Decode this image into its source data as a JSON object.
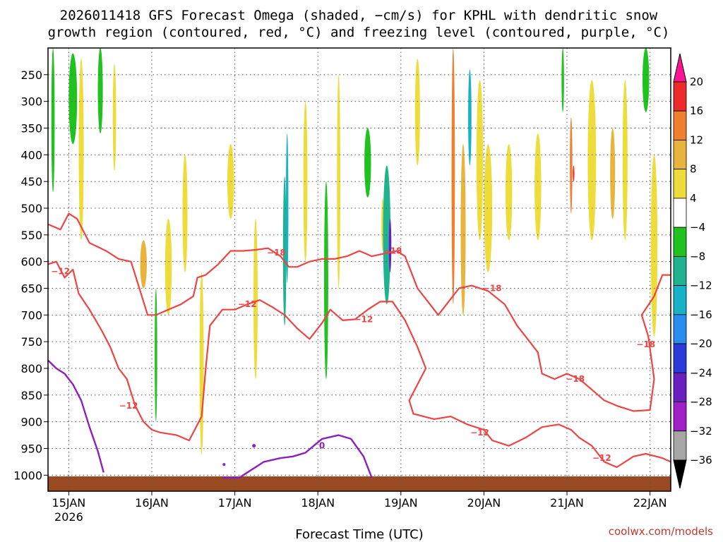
{
  "chart_data": {
    "type": "heatmap",
    "title_lines": [
      "2026011418 GFS Forecast Omega (shaded, −cm/s) for KPHL with dendritic snow",
      "growth region (contoured, red, °C) and freezing level (contoured, purple, °C)"
    ],
    "xlabel": "Forecast Time (UTC)",
    "credit": "coolwx.com/models",
    "x_ticks": [
      {
        "t": 0.5,
        "label": "15JAN",
        "sub": "2026"
      },
      {
        "t": 1.5,
        "label": "16JAN",
        "sub": ""
      },
      {
        "t": 2.5,
        "label": "17JAN",
        "sub": ""
      },
      {
        "t": 3.5,
        "label": "18JAN",
        "sub": ""
      },
      {
        "t": 4.5,
        "label": "19JAN",
        "sub": ""
      },
      {
        "t": 5.5,
        "label": "20JAN",
        "sub": ""
      },
      {
        "t": 6.5,
        "label": "21JAN",
        "sub": ""
      },
      {
        "t": 7.5,
        "label": "22JAN",
        "sub": ""
      }
    ],
    "x_range": [
      0.25,
      7.75
    ],
    "y_axis": {
      "unit": "hPa",
      "range": [
        200,
        1030
      ]
    },
    "y_ticks": [
      250,
      300,
      350,
      400,
      450,
      500,
      550,
      600,
      650,
      700,
      750,
      800,
      850,
      900,
      950,
      1000
    ],
    "colorbar": {
      "levels": [
        "20",
        "16",
        "12",
        "8",
        "4",
        "−4",
        "−8",
        "−12",
        "−16",
        "−20",
        "−24",
        "−28",
        "−32",
        "−36"
      ],
      "colors": [
        "#ff1493",
        "#ee2b2b",
        "#f07f2e",
        "#e8b43c",
        "#eedc3a",
        "#ffffff",
        "#1fc21f",
        "#1fb390",
        "#17b2c9",
        "#2a8df0",
        "#2b3bd9",
        "#6a1fc0",
        "#a020c8",
        "#a6a6a6",
        "#000000"
      ]
    },
    "shading": [
      {
        "t": 0.31,
        "p0": 200,
        "p1": 470,
        "w": 0.04,
        "v": -6
      },
      {
        "t": 0.55,
        "p0": 210,
        "p1": 380,
        "w": 0.1,
        "v": -7
      },
      {
        "t": 0.65,
        "p0": 220,
        "p1": 560,
        "w": 0.06,
        "v": 5
      },
      {
        "t": 0.88,
        "p0": 200,
        "p1": 360,
        "w": 0.06,
        "v": -6
      },
      {
        "t": 1.05,
        "p0": 230,
        "p1": 430,
        "w": 0.04,
        "v": 5
      },
      {
        "t": 1.4,
        "p0": 560,
        "p1": 650,
        "w": 0.08,
        "v": 9
      },
      {
        "t": 1.55,
        "p0": 650,
        "p1": 900,
        "w": 0.03,
        "v": -6
      },
      {
        "t": 1.7,
        "p0": 520,
        "p1": 700,
        "w": 0.08,
        "v": 6
      },
      {
        "t": 1.9,
        "p0": 400,
        "p1": 620,
        "w": 0.06,
        "v": 5
      },
      {
        "t": 2.1,
        "p0": 620,
        "p1": 960,
        "w": 0.05,
        "v": 5
      },
      {
        "t": 2.45,
        "p0": 380,
        "p1": 520,
        "w": 0.08,
        "v": 5
      },
      {
        "t": 2.75,
        "p0": 520,
        "p1": 820,
        "w": 0.05,
        "v": 5
      },
      {
        "t": 3.1,
        "p0": 440,
        "p1": 720,
        "w": 0.04,
        "v": -8
      },
      {
        "t": 3.13,
        "p0": 360,
        "p1": 640,
        "w": 0.03,
        "v": -13
      },
      {
        "t": 3.35,
        "p0": 300,
        "p1": 600,
        "w": 0.05,
        "v": 5
      },
      {
        "t": 3.6,
        "p0": 450,
        "p1": 820,
        "w": 0.05,
        "v": -6
      },
      {
        "t": 3.75,
        "p0": 250,
        "p1": 650,
        "w": 0.04,
        "v": 5
      },
      {
        "t": 4.1,
        "p0": 350,
        "p1": 480,
        "w": 0.08,
        "v": -6
      },
      {
        "t": 4.28,
        "p0": 480,
        "p1": 580,
        "w": 0.03,
        "v": 5
      },
      {
        "t": 4.33,
        "p0": 420,
        "p1": 680,
        "w": 0.09,
        "v": -9
      },
      {
        "t": 4.37,
        "p0": 520,
        "p1": 620,
        "w": 0.03,
        "v": -26
      },
      {
        "t": 4.7,
        "p0": 220,
        "p1": 420,
        "w": 0.06,
        "v": 5
      },
      {
        "t": 5.13,
        "p0": 200,
        "p1": 680,
        "w": 0.04,
        "v": 12
      },
      {
        "t": 5.25,
        "p0": 380,
        "p1": 700,
        "w": 0.06,
        "v": 9
      },
      {
        "t": 5.33,
        "p0": 240,
        "p1": 420,
        "w": 0.04,
        "v": -14
      },
      {
        "t": 5.45,
        "p0": 260,
        "p1": 560,
        "w": 0.08,
        "v": 5
      },
      {
        "t": 5.55,
        "p0": 380,
        "p1": 620,
        "w": 0.1,
        "v": 6
      },
      {
        "t": 5.8,
        "p0": 380,
        "p1": 560,
        "w": 0.08,
        "v": 5
      },
      {
        "t": 6.15,
        "p0": 360,
        "p1": 560,
        "w": 0.08,
        "v": 5
      },
      {
        "t": 6.45,
        "p0": 200,
        "p1": 320,
        "w": 0.03,
        "v": -7
      },
      {
        "t": 6.55,
        "p0": 330,
        "p1": 510,
        "w": 0.03,
        "v": 12
      },
      {
        "t": 6.58,
        "p0": 420,
        "p1": 450,
        "w": 0.02,
        "v": 18
      },
      {
        "t": 6.8,
        "p0": 260,
        "p1": 560,
        "w": 0.1,
        "v": 5
      },
      {
        "t": 7.05,
        "p0": 350,
        "p1": 520,
        "w": 0.06,
        "v": 9
      },
      {
        "t": 7.2,
        "p0": 260,
        "p1": 560,
        "w": 0.06,
        "v": 5
      },
      {
        "t": 7.45,
        "p0": 200,
        "p1": 320,
        "w": 0.08,
        "v": -6
      },
      {
        "t": 7.55,
        "p0": 400,
        "p1": 740,
        "w": 0.08,
        "v": 5
      }
    ],
    "contours": {
      "dendritic_red": [
        {
          "label": "−12",
          "points": [
            [
              0.25,
              605
            ],
            [
              0.35,
              600
            ],
            [
              0.45,
              630
            ],
            [
              0.55,
              615
            ],
            [
              0.62,
              660
            ],
            [
              0.75,
              690
            ],
            [
              0.9,
              730
            ],
            [
              1.0,
              760
            ],
            [
              1.1,
              800
            ],
            [
              1.2,
              820
            ],
            [
              1.3,
              870
            ],
            [
              1.4,
              900
            ],
            [
              1.5,
              915
            ],
            [
              1.6,
              920
            ],
            [
              1.8,
              925
            ],
            [
              1.95,
              935
            ],
            [
              2.1,
              890
            ],
            [
              2.15,
              800
            ],
            [
              2.2,
              720
            ],
            [
              2.35,
              690
            ],
            [
              2.5,
              690
            ],
            [
              2.65,
              680
            ],
            [
              2.8,
              672
            ],
            [
              2.95,
              685
            ],
            [
              3.1,
              700
            ],
            [
              3.25,
              725
            ],
            [
              3.4,
              745
            ],
            [
              3.55,
              715
            ],
            [
              3.65,
              690
            ],
            [
              3.8,
              710
            ],
            [
              3.95,
              708
            ],
            [
              4.1,
              690
            ],
            [
              4.25,
              675
            ],
            [
              4.4,
              675
            ],
            [
              4.55,
              710
            ],
            [
              4.7,
              760
            ],
            [
              4.8,
              800
            ],
            [
              4.7,
              830
            ],
            [
              4.6,
              860
            ],
            [
              4.65,
              885
            ],
            [
              4.9,
              895
            ],
            [
              5.1,
              890
            ],
            [
              5.3,
              905
            ],
            [
              5.5,
              915
            ],
            [
              5.6,
              935
            ],
            [
              5.8,
              945
            ],
            [
              6.0,
              930
            ],
            [
              6.2,
              910
            ],
            [
              6.4,
              905
            ],
            [
              6.55,
              915
            ],
            [
              6.65,
              930
            ],
            [
              6.8,
              945
            ],
            [
              6.95,
              975
            ],
            [
              7.1,
              985
            ],
            [
              7.3,
              965
            ],
            [
              7.45,
              960
            ],
            [
              7.65,
              968
            ],
            [
              7.75,
              975
            ]
          ]
        },
        {
          "label": "−18",
          "points": [
            [
              0.25,
              530
            ],
            [
              0.4,
              540
            ],
            [
              0.5,
              510
            ],
            [
              0.6,
              520
            ],
            [
              0.75,
              565
            ],
            [
              0.95,
              580
            ],
            [
              1.1,
              595
            ],
            [
              1.25,
              600
            ],
            [
              1.35,
              650
            ],
            [
              1.45,
              700
            ],
            [
              1.55,
              700
            ],
            [
              1.7,
              690
            ],
            [
              1.85,
              680
            ],
            [
              2.0,
              665
            ],
            [
              2.05,
              630
            ],
            [
              2.15,
              625
            ],
            [
              2.3,
              605
            ],
            [
              2.45,
              580
            ],
            [
              2.6,
              580
            ],
            [
              2.75,
              578
            ],
            [
              2.9,
              575
            ],
            [
              3.05,
              590
            ],
            [
              3.15,
              610
            ],
            [
              3.25,
              610
            ],
            [
              3.4,
              600
            ],
            [
              3.55,
              595
            ],
            [
              3.7,
              595
            ],
            [
              3.85,
              590
            ],
            [
              4.0,
              580
            ],
            [
              4.15,
              590
            ],
            [
              4.3,
              585
            ],
            [
              4.45,
              580
            ],
            [
              4.55,
              590
            ],
            [
              4.7,
              650
            ],
            [
              4.85,
              680
            ],
            [
              4.95,
              700
            ],
            [
              5.05,
              680
            ],
            [
              5.2,
              650
            ],
            [
              5.35,
              645
            ],
            [
              5.55,
              655
            ],
            [
              5.75,
              680
            ],
            [
              5.9,
              720
            ],
            [
              6.05,
              750
            ],
            [
              6.15,
              770
            ],
            [
              6.2,
              810
            ],
            [
              6.35,
              820
            ],
            [
              6.5,
              810
            ],
            [
              6.65,
              820
            ],
            [
              6.8,
              840
            ],
            [
              6.95,
              860
            ],
            [
              7.1,
              870
            ],
            [
              7.3,
              880
            ],
            [
              7.5,
              878
            ],
            [
              7.55,
              820
            ],
            [
              7.48,
              740
            ],
            [
              7.4,
              700
            ],
            [
              7.55,
              665
            ],
            [
              7.65,
              625
            ],
            [
              7.75,
              625
            ]
          ]
        }
      ],
      "freezing_purple": [
        {
          "label": "0",
          "points": [
            [
              0.25,
              785
            ],
            [
              0.35,
              800
            ],
            [
              0.45,
              810
            ],
            [
              0.55,
              830
            ],
            [
              0.65,
              860
            ],
            [
              0.75,
              910
            ],
            [
              0.85,
              955
            ],
            [
              0.92,
              995
            ]
          ]
        },
        {
          "label": "0",
          "points": [
            [
              2.35,
              1005
            ],
            [
              2.55,
              1005
            ],
            [
              2.7,
              990
            ],
            [
              2.85,
              975
            ],
            [
              3.05,
              968
            ],
            [
              3.2,
              965
            ],
            [
              3.35,
              958
            ],
            [
              3.55,
              932
            ],
            [
              3.75,
              925
            ],
            [
              3.9,
              932
            ],
            [
              4.05,
              965
            ],
            [
              4.15,
              1005
            ]
          ]
        }
      ]
    },
    "contour_labels": [
      {
        "text": "−12",
        "t": 0.4,
        "p": 618,
        "color": "#ee4444"
      },
      {
        "text": "−12",
        "t": 1.22,
        "p": 870,
        "color": "#ee4444"
      },
      {
        "text": "−12",
        "t": 2.65,
        "p": 680,
        "color": "#ee4444"
      },
      {
        "text": "−12",
        "t": 4.05,
        "p": 708,
        "color": "#ee4444"
      },
      {
        "text": "−12",
        "t": 5.45,
        "p": 920,
        "color": "#ee4444"
      },
      {
        "text": "−12",
        "t": 6.92,
        "p": 968,
        "color": "#ee4444"
      },
      {
        "text": "−18",
        "t": 3.0,
        "p": 583,
        "color": "#ee4444"
      },
      {
        "text": "−18",
        "t": 4.4,
        "p": 580,
        "color": "#ee4444"
      },
      {
        "text": "−18",
        "t": 5.6,
        "p": 650,
        "color": "#ee4444"
      },
      {
        "text": "−18",
        "t": 6.6,
        "p": 820,
        "color": "#ee4444"
      },
      {
        "text": "−18",
        "t": 7.45,
        "p": 755,
        "color": "#ee4444"
      },
      {
        "text": "0",
        "t": 3.55,
        "p": 945,
        "color": "#8e1fbf"
      }
    ],
    "ground_color": "#9a4a22"
  }
}
